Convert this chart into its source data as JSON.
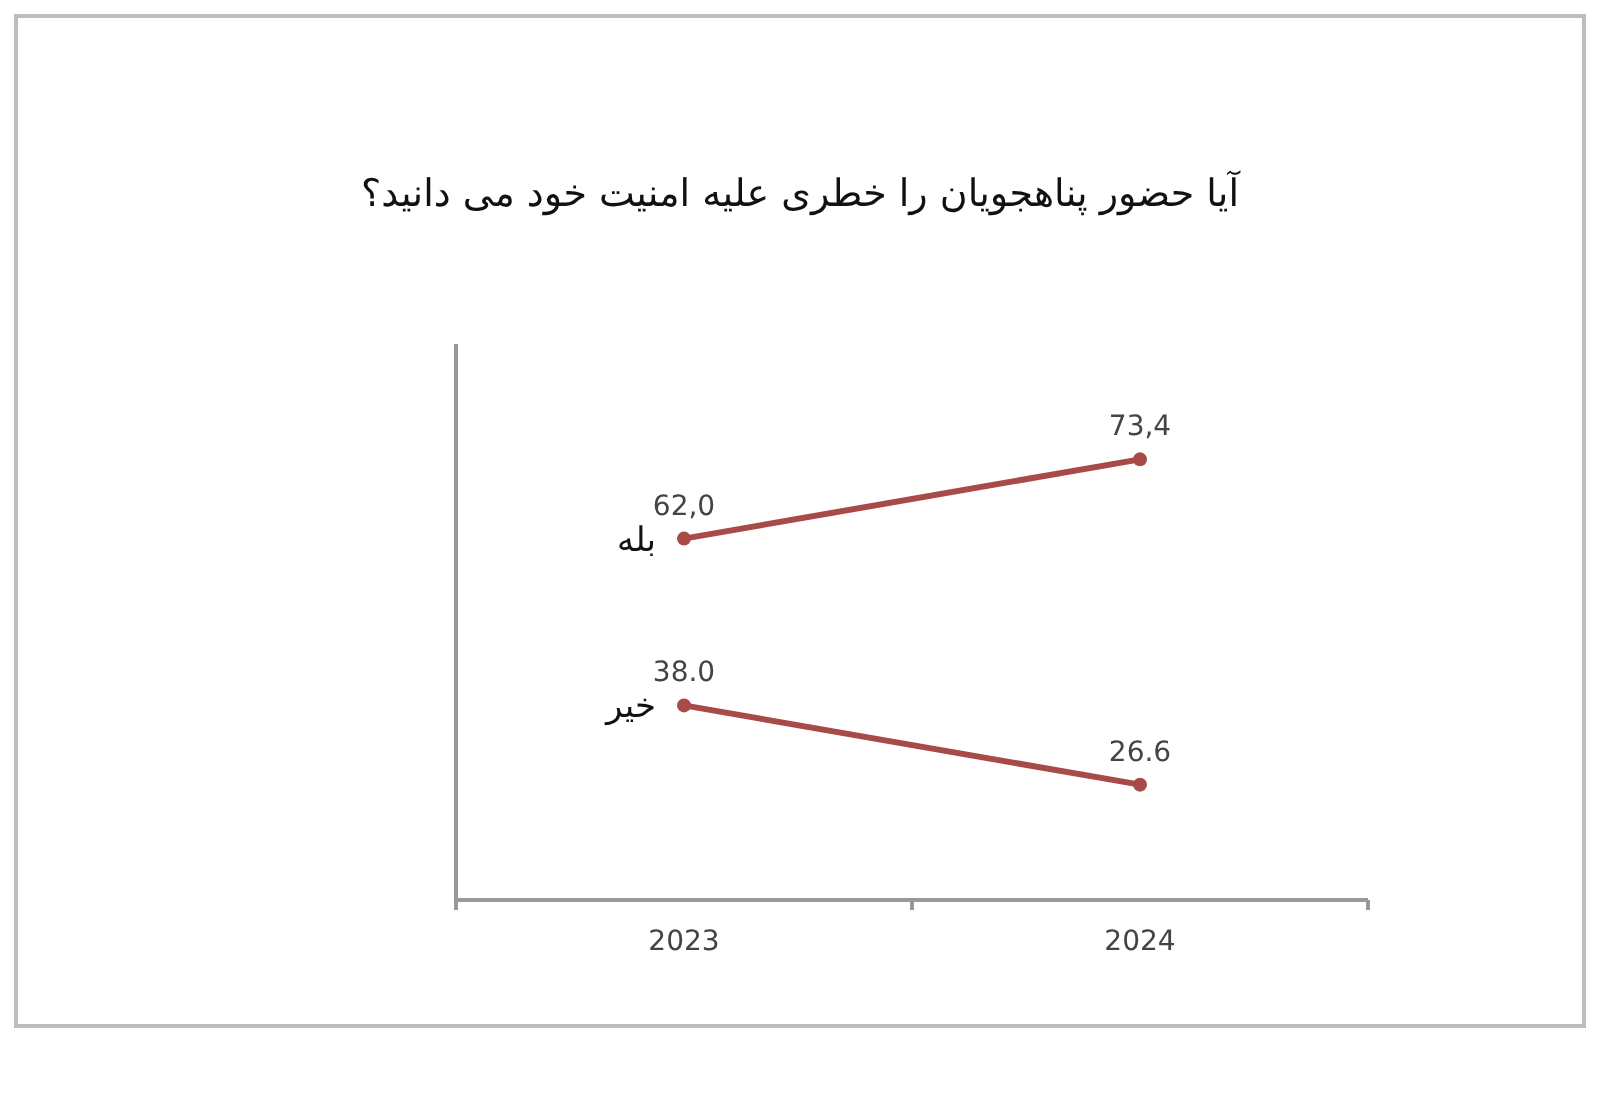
{
  "chart_data": {
    "type": "line",
    "title": "آیا حضور پناهجویان را خطری علیه امنیت خود می دانید؟",
    "categories": [
      "2023",
      "2024"
    ],
    "marker": "circle",
    "series": [
      {
        "name": "بله",
        "color": "#a84b48",
        "values": [
          62.0,
          73.4
        ],
        "value_labels": [
          "62,0",
          "73,4"
        ]
      },
      {
        "name": "خیر",
        "color": "#a84b48",
        "values": [
          38.0,
          26.6
        ],
        "value_labels": [
          "38.0",
          "26.6"
        ]
      }
    ]
  }
}
